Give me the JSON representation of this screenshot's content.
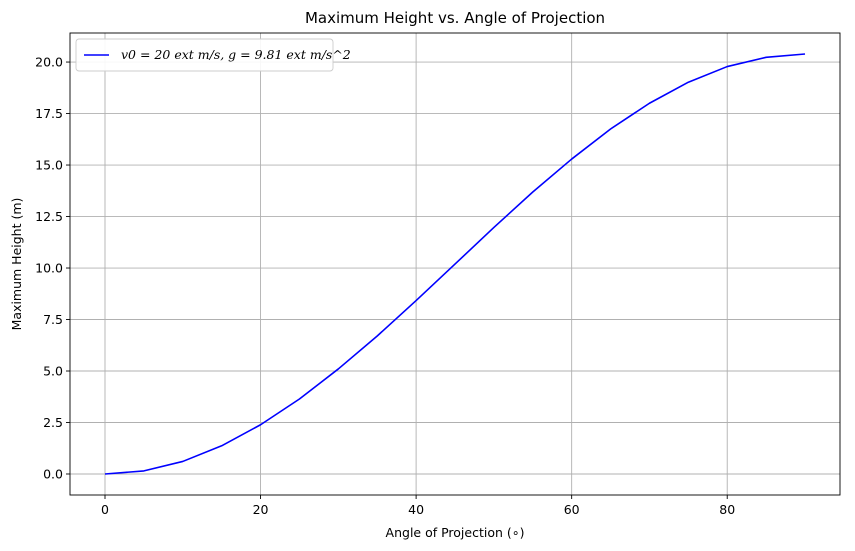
{
  "chart_data": {
    "type": "line",
    "title": "Maximum Height vs. Angle of Projection",
    "xlabel": "Angle of Projection ($^\\circ$)",
    "xlabel_display": "Angle of Projection (∘)",
    "ylabel": "Maximum Height (m)",
    "xlim": [
      -4.5,
      94.5
    ],
    "ylim": [
      -1.02,
      21.41
    ],
    "xticks": [
      0,
      20,
      40,
      60,
      80
    ],
    "xtick_labels": [
      "0",
      "20",
      "40",
      "60",
      "80"
    ],
    "yticks": [
      0.0,
      2.5,
      5.0,
      7.5,
      10.0,
      12.5,
      15.0,
      17.5,
      20.0
    ],
    "ytick_labels": [
      "0.0",
      "2.5",
      "5.0",
      "7.5",
      "10.0",
      "12.5",
      "15.0",
      "17.5",
      "20.0"
    ],
    "grid": true,
    "legend_position": "top-left",
    "series": [
      {
        "name": "v0 = 20 ext m/s, g = 9.81 ext m/s^2",
        "legend_label": "$v_0 = 20\\,\text{m/s}, g = 9.81\\,\text{m/s}^2$",
        "color": "#0000ff",
        "x": [
          0,
          5,
          10,
          15,
          20,
          25,
          30,
          35,
          40,
          45,
          50,
          55,
          60,
          65,
          70,
          75,
          80,
          85,
          90
        ],
        "values": [
          0.0,
          0.15,
          0.61,
          1.37,
          2.39,
          3.64,
          5.1,
          6.7,
          8.42,
          10.19,
          11.97,
          13.69,
          15.29,
          16.75,
          18.0,
          19.02,
          19.78,
          20.23,
          20.39
        ]
      }
    ]
  }
}
